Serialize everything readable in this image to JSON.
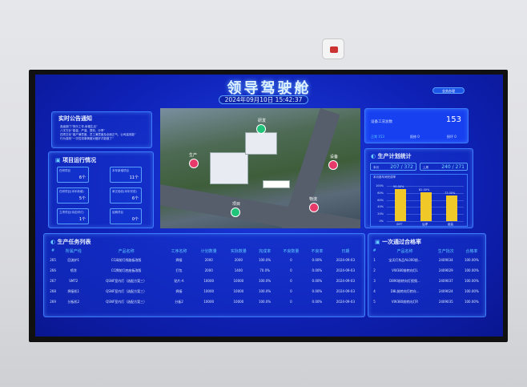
{
  "header": {
    "title": "领导驾驶舱",
    "datetime": "2024年09月10日 15:42:37",
    "business_button": "业务办理"
  },
  "notice": {
    "title": "实时公告通知",
    "lines": [
      "各级部门“快乐工作,幸福生活”",
      "八字方针“能量、严谨、提效、分享”",
      "四项文化“客户满意度、员工满意度及全面正气、公司高效能”",
      "行为准则“一次性将事情做对做好才能做了”"
    ]
  },
  "projects": {
    "title": "项目运行情况",
    "cards": [
      {
        "label": "在研项目",
        "value": "6个"
      },
      {
        "label": "本年新增项目",
        "value": "11个"
      },
      {
        "label": "在研项目(本年新增)",
        "value": "5个"
      },
      {
        "label": "单交验收(本年完成)",
        "value": "6个"
      },
      {
        "label": "立项项目(待定研讨)",
        "value": "1个"
      },
      {
        "label": "延期项目",
        "value": "0个"
      }
    ]
  },
  "map": {
    "labels": [
      "生产",
      "研发",
      "设备",
      "物流",
      "项目"
    ]
  },
  "equipment": {
    "label": "设备工况总数",
    "total": "153",
    "normal_label": "正常",
    "normal": "153",
    "repair_label": "报修",
    "repair": "0",
    "broken_label": "损坏",
    "broken": "0"
  },
  "plan": {
    "title": "生产计划统计",
    "month_label": "本月",
    "month_value": "207 / 372",
    "week_label": "上周",
    "week_value": "240 / 271"
  },
  "chart_data": {
    "type": "bar",
    "title": "本月各车间完成率",
    "categories": [
      "SMT",
      "后焊",
      "组装"
    ],
    "values": [
      90,
      82,
      73
    ],
    "data_labels": [
      "90.00%",
      "82.00%",
      "73.00%"
    ],
    "ylim": [
      0,
      100
    ],
    "yticks": [
      "0%",
      "20%",
      "40%",
      "60%",
      "80%",
      "100%"
    ],
    "bar_color": "#f0c928",
    "grid": true
  },
  "tasks": {
    "title": "生产任务列表",
    "headers": [
      "#",
      "所属产线",
      "产品名称",
      "工序名称",
      "计划数量",
      "实际数量",
      "完成率",
      "不良数量",
      "不良率",
      "日期"
    ],
    "rows": [
      [
        "265",
        "回流炉1",
        "CC阀前灯线路板改版",
        "焊接",
        "2000",
        "2000",
        "100.0%",
        "0",
        "0.00%",
        "2024-09-03"
      ],
      [
        "266",
        "喷涂",
        "CC牌前灯底座板改版",
        "打包",
        "2000",
        "1400",
        "70.0%",
        "0",
        "0.00%",
        "2024-09-03"
      ],
      [
        "267",
        "SMT2",
        "QSNF室内灯（选配方案三）",
        "贴片-A",
        "10000",
        "10000",
        "100.0%",
        "0",
        "0.00%",
        "2024-09-03"
      ],
      [
        "268",
        "焊接机1",
        "QSNF室内灯（选配方案三）",
        "焊接",
        "10000",
        "10000",
        "100.0%",
        "0",
        "0.00%",
        "2024-09-03"
      ],
      [
        "269",
        "分板机2",
        "QSNF室内灯（选配方案三）",
        "分板2",
        "10000",
        "10000",
        "100.0%",
        "0",
        "0.00%",
        "2024-09-03"
      ]
    ]
  },
  "passrate": {
    "title": "一次通过合格率",
    "headers": [
      "#",
      "产品名称",
      "生产批次",
      "合格率"
    ],
    "rows": [
      [
        "1",
        "宝沃灯系品AL000前...",
        "2409034",
        "100.00%"
      ],
      [
        "2",
        "VW380前转向灯L",
        "2409029",
        "100.00%"
      ],
      [
        "3",
        "D890前转向灯视频...",
        "2409037",
        "100.00%"
      ],
      [
        "4",
        "D8L前转向灯转向...",
        "2409024",
        "100.00%"
      ],
      [
        "5",
        "VW380前转向灯R",
        "2409035",
        "100.00%"
      ]
    ]
  }
}
